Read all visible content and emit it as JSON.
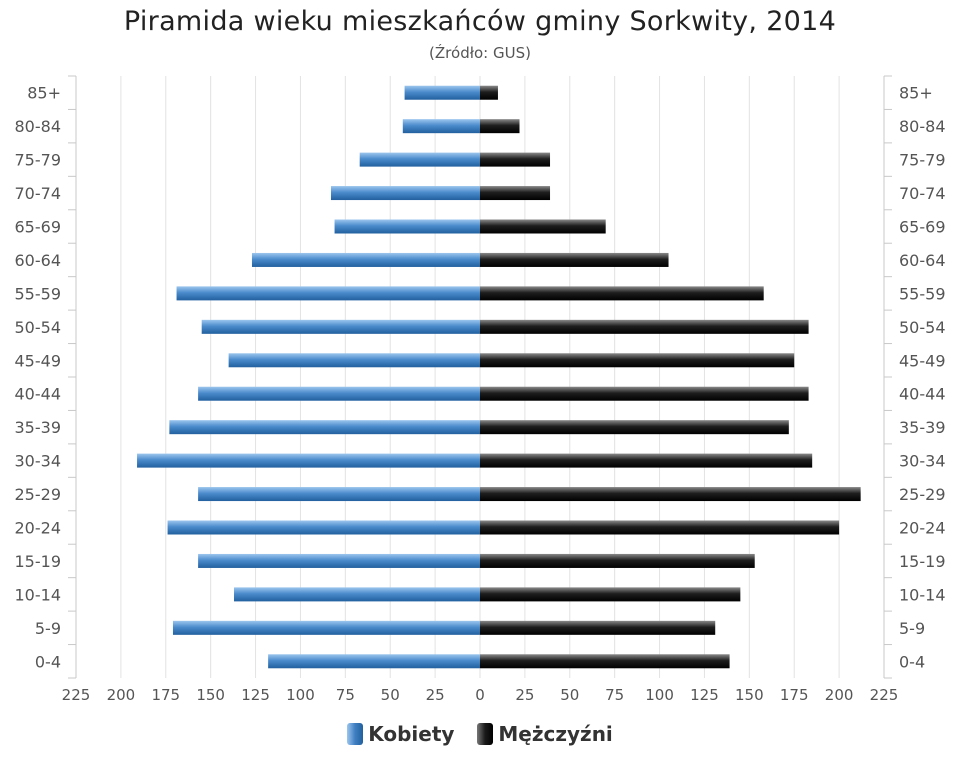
{
  "chart_data": {
    "type": "bar",
    "orientation": "horizontal-population-pyramid",
    "title": "Piramida wieku mieszkańców gminy Sorkwity, 2014",
    "subtitle": "(Źródło: GUS)",
    "categories": [
      "0-4",
      "5-9",
      "10-14",
      "15-19",
      "20-24",
      "25-29",
      "30-34",
      "35-39",
      "40-44",
      "45-49",
      "50-54",
      "55-59",
      "60-64",
      "65-69",
      "70-74",
      "75-79",
      "80-84",
      "85+"
    ],
    "series": [
      {
        "name": "Kobiety",
        "color": "#3f7fc1",
        "values": [
          118,
          171,
          137,
          157,
          174,
          157,
          191,
          173,
          157,
          140,
          155,
          169,
          127,
          81,
          83,
          67,
          43,
          42
        ]
      },
      {
        "name": "Mężczyźni",
        "color": "#1a1a1a",
        "values": [
          139,
          131,
          145,
          153,
          200,
          212,
          185,
          172,
          183,
          175,
          183,
          158,
          105,
          70,
          39,
          39,
          22,
          10
        ]
      }
    ],
    "x_ticks": [
      225,
      200,
      175,
      150,
      125,
      100,
      75,
      50,
      25,
      0,
      25,
      50,
      75,
      100,
      125,
      150,
      175,
      200,
      225
    ],
    "xlim": [
      -225,
      225
    ],
    "grid": true,
    "legend_position": "bottom-center"
  }
}
